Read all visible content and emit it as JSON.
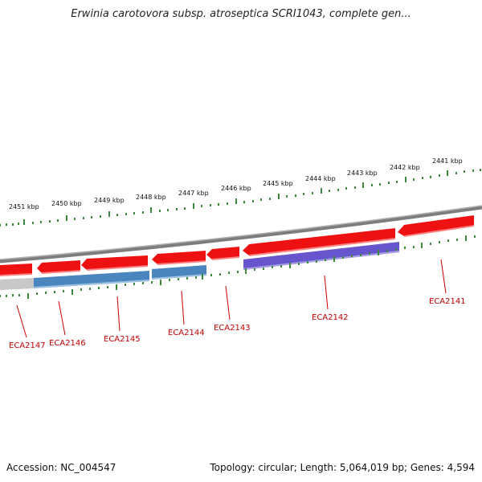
{
  "title": "Erwinia carotovora subsp. atroseptica SCRI1043, complete gen...",
  "footer": {
    "accession": "Accession: NC_004547",
    "summary": "Topology: circular; Length: 5,064,019 bp; Genes: 4,594"
  },
  "colors": {
    "forward_cds": "#ee1111",
    "reverse_blue": "#4a86bd",
    "reverse_purple": "#6655cc",
    "reverse_gray": "#c8c8c8",
    "backbone": "#888888",
    "ticks": "#3a8a3a",
    "gene_label": "#cc0000"
  },
  "kbp_labels": [
    "2451 kbp",
    "2450 kbp",
    "2449 kbp",
    "2448 kbp",
    "2447 kbp",
    "2446 kbp",
    "2445 kbp",
    "2444 kbp",
    "2443 kbp",
    "2442 kbp",
    "2441 kbp"
  ],
  "genes": [
    "ECA2147",
    "ECA2146",
    "ECA2145",
    "ECA2144",
    "ECA2143",
    "ECA2142",
    "ECA2141"
  ]
}
